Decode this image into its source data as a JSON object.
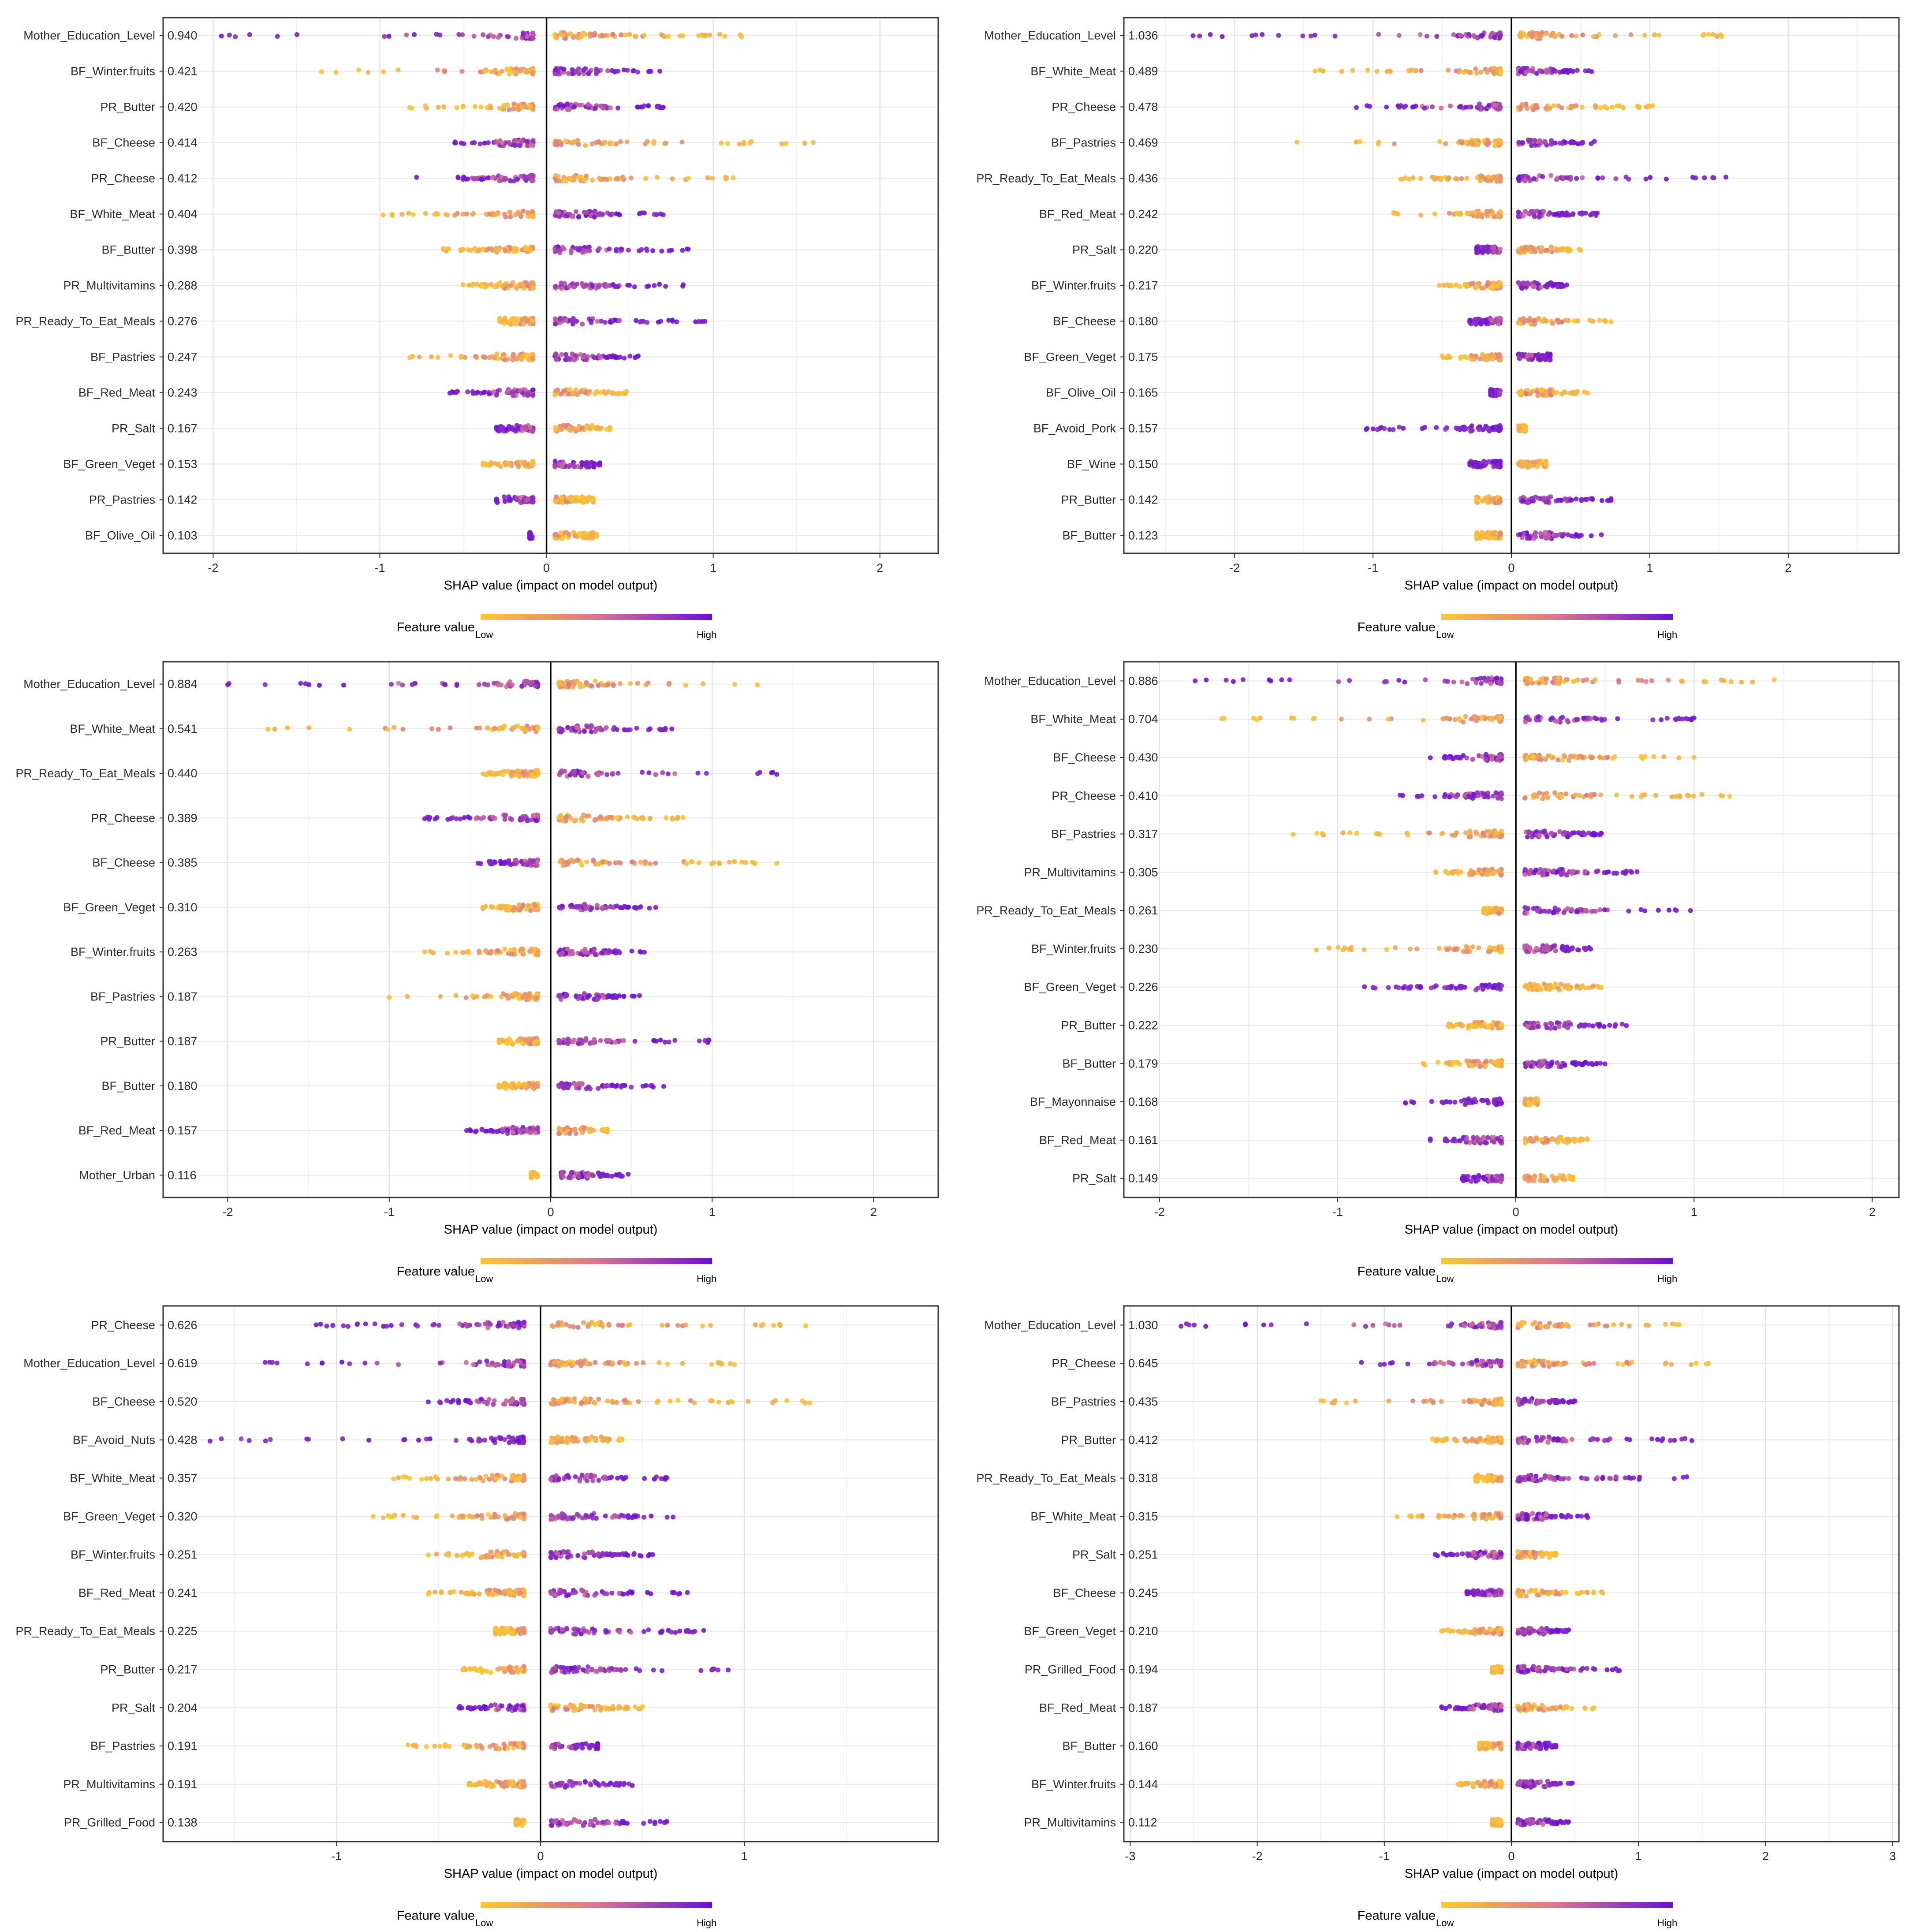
{
  "figure": {
    "colors": {
      "low": "#fec82e",
      "mid": "#d8768f",
      "high": "#6a0fd6"
    },
    "x_title": "SHAP value (impact on model output)",
    "legend_title": "Feature value",
    "legend_low": "Low",
    "legend_high": "High"
  },
  "chart_data": [
    {
      "type": "scatter",
      "title": "",
      "xlabel": "SHAP value (impact on model output)",
      "xlim": [
        -2.3,
        2.35
      ],
      "xticks": [
        -2,
        -1,
        0,
        1,
        2
      ],
      "tick_labels": [
        "-2",
        "-1",
        "0",
        "1",
        "2"
      ],
      "features": [
        {
          "name": "Mother_Education_Level",
          "importance": "0.940",
          "lo": -1.95,
          "hi": 1.17,
          "pattern": "pos_low"
        },
        {
          "name": "BF_Winter.fruits",
          "importance": "0.421",
          "lo": -1.35,
          "hi": 0.68,
          "pattern": "pos_high"
        },
        {
          "name": "PR_Butter",
          "importance": "0.420",
          "lo": -0.82,
          "hi": 0.7,
          "pattern": "pos_high"
        },
        {
          "name": "BF_Cheese",
          "importance": "0.414",
          "lo": -0.55,
          "hi": 1.6,
          "pattern": "pos_low"
        },
        {
          "name": "PR_Cheese",
          "importance": "0.412",
          "lo": -0.78,
          "hi": 1.12,
          "pattern": "pos_low"
        },
        {
          "name": "BF_White_Meat",
          "importance": "0.404",
          "lo": -0.98,
          "hi": 0.7,
          "pattern": "pos_high"
        },
        {
          "name": "BF_Butter",
          "importance": "0.398",
          "lo": -0.62,
          "hi": 0.85,
          "pattern": "pos_high"
        },
        {
          "name": "PR_Multivitamins",
          "importance": "0.288",
          "lo": -0.5,
          "hi": 0.82,
          "pattern": "pos_high"
        },
        {
          "name": "PR_Ready_To_Eat_Meals",
          "importance": "0.276",
          "lo": -0.28,
          "hi": 0.95,
          "pattern": "pos_high"
        },
        {
          "name": "BF_Pastries",
          "importance": "0.247",
          "lo": -0.82,
          "hi": 0.55,
          "pattern": "pos_high"
        },
        {
          "name": "BF_Red_Meat",
          "importance": "0.243",
          "lo": -0.58,
          "hi": 0.48,
          "pattern": "pos_low"
        },
        {
          "name": "PR_Salt",
          "importance": "0.167",
          "lo": -0.3,
          "hi": 0.38,
          "pattern": "pos_low"
        },
        {
          "name": "BF_Green_Veget",
          "importance": "0.153",
          "lo": -0.38,
          "hi": 0.32,
          "pattern": "pos_high"
        },
        {
          "name": "PR_Pastries",
          "importance": "0.142",
          "lo": -0.3,
          "hi": 0.28,
          "pattern": "pos_low"
        },
        {
          "name": "BF_Olive_Oil",
          "importance": "0.103",
          "lo": -0.1,
          "hi": 0.3,
          "pattern": "pos_low"
        }
      ]
    },
    {
      "type": "scatter",
      "title": "",
      "xlabel": "SHAP value (impact on model output)",
      "xlim": [
        -2.8,
        2.8
      ],
      "xticks": [
        -2,
        -1,
        0,
        1,
        2
      ],
      "tick_labels": [
        "-2",
        "-1",
        "0",
        "1",
        "2"
      ],
      "features": [
        {
          "name": "Mother_Education_Level",
          "importance": "1.036",
          "lo": -2.3,
          "hi": 1.52,
          "pattern": "pos_low"
        },
        {
          "name": "BF_White_Meat",
          "importance": "0.489",
          "lo": -1.42,
          "hi": 0.58,
          "pattern": "pos_high"
        },
        {
          "name": "PR_Cheese",
          "importance": "0.478",
          "lo": -1.12,
          "hi": 1.02,
          "pattern": "pos_low"
        },
        {
          "name": "BF_Pastries",
          "importance": "0.469",
          "lo": -1.55,
          "hi": 0.6,
          "pattern": "pos_high"
        },
        {
          "name": "PR_Ready_To_Eat_Meals",
          "importance": "0.436",
          "lo": -0.8,
          "hi": 1.55,
          "pattern": "pos_high"
        },
        {
          "name": "BF_Red_Meat",
          "importance": "0.242",
          "lo": -0.85,
          "hi": 0.62,
          "pattern": "pos_high"
        },
        {
          "name": "PR_Salt",
          "importance": "0.220",
          "lo": -0.25,
          "hi": 0.5,
          "pattern": "pos_low"
        },
        {
          "name": "BF_Winter.fruits",
          "importance": "0.217",
          "lo": -0.52,
          "hi": 0.4,
          "pattern": "pos_high"
        },
        {
          "name": "BF_Cheese",
          "importance": "0.180",
          "lo": -0.3,
          "hi": 0.72,
          "pattern": "pos_low"
        },
        {
          "name": "BF_Green_Veget",
          "importance": "0.175",
          "lo": -0.5,
          "hi": 0.28,
          "pattern": "pos_high"
        },
        {
          "name": "BF_Olive_Oil",
          "importance": "0.165",
          "lo": -0.15,
          "hi": 0.55,
          "pattern": "pos_low"
        },
        {
          "name": "BF_Avoid_Pork",
          "importance": "0.157",
          "lo": -1.05,
          "hi": 0.1,
          "pattern": "neg_high"
        },
        {
          "name": "BF_Wine",
          "importance": "0.150",
          "lo": -0.3,
          "hi": 0.25,
          "pattern": "neg_high"
        },
        {
          "name": "PR_Butter",
          "importance": "0.142",
          "lo": -0.25,
          "hi": 0.72,
          "pattern": "pos_high"
        },
        {
          "name": "BF_Butter",
          "importance": "0.123",
          "lo": -0.25,
          "hi": 0.65,
          "pattern": "pos_high"
        }
      ]
    },
    {
      "type": "scatter",
      "title": "",
      "xlabel": "SHAP value (impact on model output)",
      "xlim": [
        -2.4,
        2.4
      ],
      "xticks": [
        -2,
        -1,
        0,
        1,
        2
      ],
      "tick_labels": [
        "-2",
        "-1",
        "0",
        "1",
        "2"
      ],
      "features": [
        {
          "name": "Mother_Education_Level",
          "importance": "0.884",
          "lo": -2.0,
          "hi": 1.28,
          "pattern": "pos_low"
        },
        {
          "name": "BF_White_Meat",
          "importance": "0.541",
          "lo": -1.75,
          "hi": 0.75,
          "pattern": "pos_high"
        },
        {
          "name": "PR_Ready_To_Eat_Meals",
          "importance": "0.440",
          "lo": -0.42,
          "hi": 1.4,
          "pattern": "pos_high"
        },
        {
          "name": "PR_Cheese",
          "importance": "0.389",
          "lo": -0.78,
          "hi": 0.82,
          "pattern": "pos_low"
        },
        {
          "name": "BF_Cheese",
          "importance": "0.385",
          "lo": -0.45,
          "hi": 1.4,
          "pattern": "pos_low"
        },
        {
          "name": "BF_Green_Veget",
          "importance": "0.310",
          "lo": -0.42,
          "hi": 0.65,
          "pattern": "pos_high"
        },
        {
          "name": "BF_Winter.fruits",
          "importance": "0.263",
          "lo": -0.78,
          "hi": 0.58,
          "pattern": "pos_high"
        },
        {
          "name": "BF_Pastries",
          "importance": "0.187",
          "lo": -1.0,
          "hi": 0.55,
          "pattern": "pos_high"
        },
        {
          "name": "PR_Butter",
          "importance": "0.187",
          "lo": -0.32,
          "hi": 0.98,
          "pattern": "pos_high"
        },
        {
          "name": "BF_Butter",
          "importance": "0.180",
          "lo": -0.32,
          "hi": 0.7,
          "pattern": "pos_high"
        },
        {
          "name": "BF_Red_Meat",
          "importance": "0.157",
          "lo": -0.52,
          "hi": 0.35,
          "pattern": "pos_low"
        },
        {
          "name": "Mother_Urban",
          "importance": "0.116",
          "lo": -0.12,
          "hi": 0.48,
          "pattern": "pos_high"
        }
      ]
    },
    {
      "type": "scatter",
      "title": "",
      "xlabel": "SHAP value (impact on model output)",
      "xlim": [
        -2.2,
        2.15
      ],
      "xticks": [
        -2,
        -1,
        0,
        1,
        2
      ],
      "tick_labels": [
        "-2",
        "-1",
        "0",
        "1",
        "2"
      ],
      "features": [
        {
          "name": "Mother_Education_Level",
          "importance": "0.886",
          "lo": -1.8,
          "hi": 1.45,
          "pattern": "pos_low"
        },
        {
          "name": "BF_White_Meat",
          "importance": "0.704",
          "lo": -1.65,
          "hi": 1.0,
          "pattern": "pos_high"
        },
        {
          "name": "BF_Cheese",
          "importance": "0.430",
          "lo": -0.48,
          "hi": 1.0,
          "pattern": "pos_low"
        },
        {
          "name": "PR_Cheese",
          "importance": "0.410",
          "lo": -0.65,
          "hi": 1.2,
          "pattern": "pos_low"
        },
        {
          "name": "BF_Pastries",
          "importance": "0.317",
          "lo": -1.25,
          "hi": 0.48,
          "pattern": "pos_high"
        },
        {
          "name": "PR_Multivitamins",
          "importance": "0.305",
          "lo": -0.45,
          "hi": 0.68,
          "pattern": "pos_high"
        },
        {
          "name": "PR_Ready_To_Eat_Meals",
          "importance": "0.261",
          "lo": -0.18,
          "hi": 0.98,
          "pattern": "pos_high"
        },
        {
          "name": "BF_Winter.fruits",
          "importance": "0.230",
          "lo": -1.12,
          "hi": 0.42,
          "pattern": "pos_high"
        },
        {
          "name": "BF_Green_Veget",
          "importance": "0.226",
          "lo": -0.85,
          "hi": 0.48,
          "pattern": "neg_high"
        },
        {
          "name": "PR_Butter",
          "importance": "0.222",
          "lo": -0.38,
          "hi": 0.62,
          "pattern": "pos_high"
        },
        {
          "name": "BF_Butter",
          "importance": "0.179",
          "lo": -0.52,
          "hi": 0.5,
          "pattern": "pos_high"
        },
        {
          "name": "BF_Mayonnaise",
          "importance": "0.168",
          "lo": -0.62,
          "hi": 0.12,
          "pattern": "neg_high"
        },
        {
          "name": "BF_Red_Meat",
          "importance": "0.161",
          "lo": -0.48,
          "hi": 0.4,
          "pattern": "pos_low"
        },
        {
          "name": "PR_Salt",
          "importance": "0.149",
          "lo": -0.3,
          "hi": 0.32,
          "pattern": "pos_low"
        }
      ]
    },
    {
      "type": "scatter",
      "title": "",
      "xlabel": "SHAP value (impact on model output)",
      "xlim": [
        -1.85,
        1.95
      ],
      "xticks": [
        -1,
        0,
        1
      ],
      "tick_labels": [
        "-1",
        "0",
        "1"
      ],
      "features": [
        {
          "name": "PR_Cheese",
          "importance": "0.626",
          "lo": -1.1,
          "hi": 1.3,
          "pattern": "pos_low"
        },
        {
          "name": "Mother_Education_Level",
          "importance": "0.619",
          "lo": -1.35,
          "hi": 0.95,
          "pattern": "pos_low"
        },
        {
          "name": "BF_Cheese",
          "importance": "0.520",
          "lo": -0.55,
          "hi": 1.32,
          "pattern": "pos_low"
        },
        {
          "name": "BF_Avoid_Nuts",
          "importance": "0.428",
          "lo": -1.62,
          "hi": 0.4,
          "pattern": "neg_high"
        },
        {
          "name": "BF_White_Meat",
          "importance": "0.357",
          "lo": -0.72,
          "hi": 0.62,
          "pattern": "pos_high"
        },
        {
          "name": "BF_Green_Veget",
          "importance": "0.320",
          "lo": -0.82,
          "hi": 0.65,
          "pattern": "pos_high"
        },
        {
          "name": "BF_Winter.fruits",
          "importance": "0.251",
          "lo": -0.55,
          "hi": 0.55,
          "pattern": "pos_high"
        },
        {
          "name": "BF_Red_Meat",
          "importance": "0.241",
          "lo": -0.55,
          "hi": 0.72,
          "pattern": "pos_high"
        },
        {
          "name": "PR_Ready_To_Eat_Meals",
          "importance": "0.225",
          "lo": -0.22,
          "hi": 0.8,
          "pattern": "pos_high"
        },
        {
          "name": "PR_Butter",
          "importance": "0.217",
          "lo": -0.38,
          "hi": 0.92,
          "pattern": "pos_high"
        },
        {
          "name": "PR_Salt",
          "importance": "0.204",
          "lo": -0.4,
          "hi": 0.5,
          "pattern": "pos_low"
        },
        {
          "name": "BF_Pastries",
          "importance": "0.191",
          "lo": -0.65,
          "hi": 0.28,
          "pattern": "pos_high"
        },
        {
          "name": "PR_Multivitamins",
          "importance": "0.191",
          "lo": -0.35,
          "hi": 0.45,
          "pattern": "pos_high"
        },
        {
          "name": "PR_Grilled_Food",
          "importance": "0.138",
          "lo": -0.12,
          "hi": 0.62,
          "pattern": "pos_high"
        }
      ]
    },
    {
      "type": "scatter",
      "title": "",
      "xlabel": "SHAP value (impact on model output)",
      "xlim": [
        -3.05,
        3.05
      ],
      "xticks": [
        -3,
        -2,
        -1,
        0,
        1,
        2,
        3
      ],
      "tick_labels": [
        "-3",
        "-2",
        "-1",
        "0",
        "1",
        "2",
        "3"
      ],
      "features": [
        {
          "name": "Mother_Education_Level",
          "importance": "1.030",
          "lo": -2.6,
          "hi": 1.32,
          "pattern": "pos_low"
        },
        {
          "name": "PR_Cheese",
          "importance": "0.645",
          "lo": -1.18,
          "hi": 1.55,
          "pattern": "pos_low"
        },
        {
          "name": "BF_Pastries",
          "importance": "0.435",
          "lo": -1.5,
          "hi": 0.5,
          "pattern": "pos_high"
        },
        {
          "name": "PR_Butter",
          "importance": "0.412",
          "lo": -0.62,
          "hi": 1.42,
          "pattern": "pos_high"
        },
        {
          "name": "PR_Ready_To_Eat_Meals",
          "importance": "0.318",
          "lo": -0.28,
          "hi": 1.38,
          "pattern": "pos_high"
        },
        {
          "name": "BF_White_Meat",
          "importance": "0.315",
          "lo": -0.9,
          "hi": 0.6,
          "pattern": "pos_high"
        },
        {
          "name": "PR_Salt",
          "importance": "0.251",
          "lo": -0.6,
          "hi": 0.35,
          "pattern": "pos_low"
        },
        {
          "name": "BF_Cheese",
          "importance": "0.245",
          "lo": -0.35,
          "hi": 0.72,
          "pattern": "pos_low"
        },
        {
          "name": "BF_Green_Veget",
          "importance": "0.210",
          "lo": -0.55,
          "hi": 0.45,
          "pattern": "pos_high"
        },
        {
          "name": "PR_Grilled_Food",
          "importance": "0.194",
          "lo": -0.15,
          "hi": 0.85,
          "pattern": "pos_high"
        },
        {
          "name": "BF_Red_Meat",
          "importance": "0.187",
          "lo": -0.55,
          "hi": 0.65,
          "pattern": "pos_low"
        },
        {
          "name": "BF_Butter",
          "importance": "0.160",
          "lo": -0.25,
          "hi": 0.35,
          "pattern": "pos_high"
        },
        {
          "name": "BF_Winter.fruits",
          "importance": "0.144",
          "lo": -0.42,
          "hi": 0.48,
          "pattern": "pos_high"
        },
        {
          "name": "PR_Multivitamins",
          "importance": "0.112",
          "lo": -0.15,
          "hi": 0.45,
          "pattern": "pos_high"
        }
      ]
    }
  ]
}
